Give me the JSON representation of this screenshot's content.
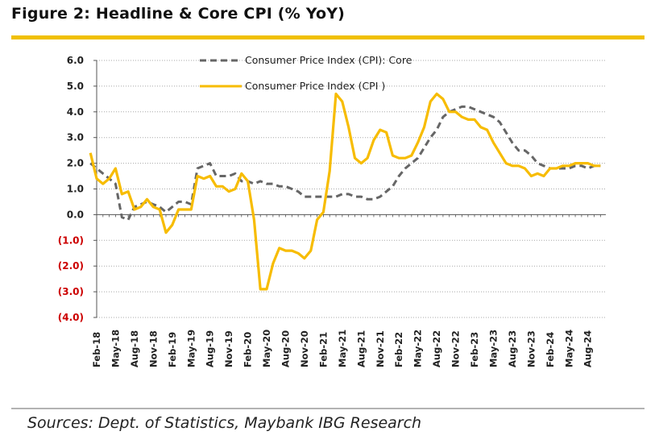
{
  "figure_title": "Figure 2: Headline & Core CPI (% YoY)",
  "sources": "Sources: Dept. of Statistics, Maybank IBG Research",
  "colors": {
    "accent_rule": "#f0c000",
    "core_line": "#666666",
    "cpi_line": "#f7bc00",
    "negative_tick": "#cc0000",
    "axis": "#555555"
  },
  "chart_data": {
    "type": "line",
    "title": "",
    "xlabel": "",
    "ylabel": "",
    "ylim": [
      -4.0,
      6.0
    ],
    "y_ticks": [
      6.0,
      5.0,
      4.0,
      3.0,
      2.0,
      1.0,
      0.0,
      -1.0,
      -2.0,
      -3.0,
      -4.0
    ],
    "y_tick_labels": [
      "6.0",
      "5.0",
      "4.0",
      "3.0",
      "2.0",
      "1.0",
      "0.0",
      "(1.0)",
      "(2.0)",
      "(3.0)",
      "(4.0)"
    ],
    "x_tick_labels": [
      "Feb-18",
      "May-18",
      "Aug-18",
      "Nov-18",
      "Feb-19",
      "May-19",
      "Aug-19",
      "Nov-19",
      "Feb-20",
      "May-20",
      "Aug-20",
      "Nov-20",
      "Feb-21",
      "May-21",
      "Aug-21",
      "Nov-21",
      "Feb-22",
      "May-22",
      "Aug-22",
      "Nov-22",
      "Feb-23",
      "May-23",
      "Aug-23",
      "Nov-23",
      "Feb-24",
      "May-24",
      "Aug-24"
    ],
    "grid": "horizontal dotted",
    "legend": "top",
    "x_start": "Jan-18",
    "series": [
      {
        "name": "Consumer Price Index (CPI): Core",
        "style": "dashed",
        "values": [
          2.0,
          1.8,
          1.6,
          1.4,
          1.2,
          -0.1,
          -0.2,
          0.3,
          0.4,
          0.5,
          0.4,
          0.3,
          0.1,
          0.3,
          0.5,
          0.5,
          0.4,
          1.8,
          1.9,
          2.0,
          1.5,
          1.5,
          1.5,
          1.6,
          1.3,
          1.3,
          1.2,
          1.3,
          1.2,
          1.2,
          1.1,
          1.1,
          1.0,
          0.9,
          0.7,
          0.7,
          0.7,
          0.7,
          0.7,
          0.7,
          0.8,
          0.8,
          0.7,
          0.7,
          0.6,
          0.6,
          0.7,
          0.9,
          1.1,
          1.5,
          1.8,
          2.0,
          2.2,
          2.6,
          3.0,
          3.3,
          3.8,
          4.0,
          4.1,
          4.2,
          4.2,
          4.1,
          4.0,
          3.9,
          3.8,
          3.6,
          3.2,
          2.8,
          2.5,
          2.5,
          2.3,
          2.0,
          1.9,
          1.8,
          1.8,
          1.8,
          1.8,
          1.9,
          1.9,
          1.8,
          1.9,
          1.9
        ]
      },
      {
        "name": "Consumer Price Index (CPI )",
        "style": "solid",
        "values": [
          2.4,
          1.4,
          1.2,
          1.4,
          1.8,
          0.8,
          0.9,
          0.2,
          0.3,
          0.6,
          0.3,
          0.2,
          -0.7,
          -0.4,
          0.2,
          0.2,
          0.2,
          1.5,
          1.4,
          1.5,
          1.1,
          1.1,
          0.9,
          1.0,
          1.6,
          1.3,
          -0.2,
          -2.9,
          -2.9,
          -1.9,
          -1.3,
          -1.4,
          -1.4,
          -1.5,
          -1.7,
          -1.4,
          -0.2,
          0.1,
          1.7,
          4.7,
          4.4,
          3.4,
          2.2,
          2.0,
          2.2,
          2.9,
          3.3,
          3.2,
          2.3,
          2.2,
          2.2,
          2.3,
          2.8,
          3.4,
          4.4,
          4.7,
          4.5,
          4.0,
          4.0,
          3.8,
          3.7,
          3.7,
          3.4,
          3.3,
          2.8,
          2.4,
          2.0,
          1.9,
          1.9,
          1.8,
          1.5,
          1.6,
          1.5,
          1.8,
          1.8,
          1.9,
          1.9,
          2.0,
          2.0,
          2.0,
          1.9,
          1.9
        ]
      }
    ]
  }
}
